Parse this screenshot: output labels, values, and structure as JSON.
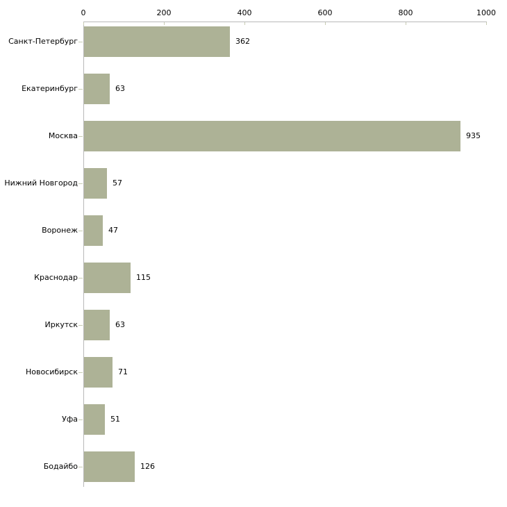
{
  "chart_data": {
    "type": "bar",
    "orientation": "horizontal",
    "title": "",
    "xlabel": "",
    "ylabel": "",
    "grid": false,
    "legend": "none",
    "xlim": [
      0,
      1000
    ],
    "x_ticks": [
      0,
      200,
      400,
      600,
      800,
      1000
    ],
    "categories": [
      "Санкт-Петербург",
      "Екатеринбург",
      "Москва",
      "Нижний Новгород",
      "Воронеж",
      "Краснодар",
      "Иркутск",
      "Новосибирск",
      "Уфа",
      "Бодайбо"
    ],
    "values": [
      362,
      63,
      935,
      57,
      47,
      115,
      63,
      71,
      51,
      126
    ],
    "value_labels": [
      "362",
      "63",
      "935",
      "57",
      "47",
      "115",
      "63",
      "71",
      "51",
      "126"
    ],
    "colors": {
      "bar": "#adb296",
      "axis": "#b8b8b8",
      "tick": "#c8ccb3",
      "text": "#000000",
      "background": "#ffffff"
    }
  }
}
